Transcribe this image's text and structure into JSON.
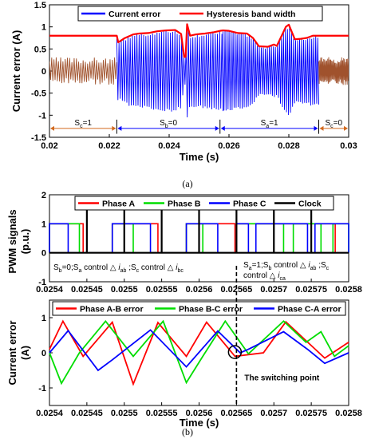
{
  "chart_data": [
    {
      "type": "line",
      "panel_label": "(a)",
      "xlabel": "Time (s)",
      "ylabel": "Current error  (A)",
      "xlim": [
        0.02,
        0.03
      ],
      "ylim": [
        -1.5,
        1.5
      ],
      "xticks": [
        "0.02",
        "0.022",
        "0.024",
        "0.026",
        "0.028",
        "0.03"
      ],
      "yticks": [
        "-1.5",
        "-1",
        "-0.5",
        "0",
        "0.5",
        "1",
        "1.5"
      ],
      "legend": {
        "placement": "top",
        "entries": [
          "Current error",
          "Hysteresis band width"
        ]
      },
      "colors": {
        "error_brown": "#a0522d",
        "error_blue": "#0000ff",
        "band": "#ff0000",
        "annot": "#d2691e"
      },
      "series": [
        {
          "name": "Current error",
          "segments": [
            {
              "x0": 0.02,
              "x1": 0.02225,
              "amplitude": 0.3,
              "color": "brown"
            },
            {
              "x0": 0.02225,
              "x1": 0.0258,
              "amplitude": "follows band",
              "color": "blue"
            },
            {
              "x0": 0.0258,
              "x1": 0.029,
              "amplitude": "follows band",
              "color": "blue"
            },
            {
              "x0": 0.029,
              "x1": 0.03,
              "amplitude": 0.3,
              "color": "brown"
            }
          ]
        },
        {
          "name": "Hysteresis band width",
          "x": [
            0.02,
            0.02225,
            0.0223,
            0.0225,
            0.0228,
            0.023,
            0.0233,
            0.0236,
            0.0239,
            0.0242,
            0.0244,
            0.0245,
            0.02455,
            0.0246,
            0.0247,
            0.0249,
            0.0252,
            0.0255,
            0.0257,
            0.0258,
            0.026,
            0.0263,
            0.0266,
            0.0268,
            0.027,
            0.0273,
            0.0275,
            0.0276,
            0.0279,
            0.028,
            0.0282,
            0.0284,
            0.0286,
            0.0288,
            0.029,
            0.03
          ],
          "y": [
            0.8,
            0.8,
            0.65,
            0.74,
            0.83,
            0.85,
            0.86,
            0.9,
            0.92,
            0.93,
            0.84,
            0.32,
            0.32,
            1.06,
            0.8,
            0.83,
            0.85,
            0.88,
            0.91,
            0.92,
            0.91,
            0.86,
            0.85,
            0.75,
            0.56,
            0.55,
            0.6,
            0.57,
            1.0,
            1.05,
            0.72,
            0.73,
            0.75,
            0.8,
            0.8,
            0.8
          ]
        }
      ],
      "regions": [
        {
          "label_main": "S",
          "label_sub": "c",
          "label_rest": "=1",
          "x0": 0.02,
          "x1": 0.02225,
          "color": "brown"
        },
        {
          "label_main": "S",
          "label_sub": "b",
          "label_rest": "=0",
          "x0": 0.02225,
          "x1": 0.0257,
          "color": "blue"
        },
        {
          "label_main": "S",
          "label_sub": "a",
          "label_rest": "=1",
          "x0": 0.0257,
          "x1": 0.029,
          "color": "blue"
        },
        {
          "label_main": "S",
          "label_sub": "c",
          "label_rest": "=0",
          "x0": 0.029,
          "x1": 0.03,
          "color": "brown"
        }
      ]
    },
    {
      "type": "line",
      "panel_label": "(b)",
      "ylabel_1": "PWM signals",
      "ylabel_2": "(p.u.)",
      "xlim": [
        0.0254,
        0.0258
      ],
      "ylim": [
        -1,
        2
      ],
      "yticks": [
        "-1",
        "0",
        "1",
        "2"
      ],
      "xticks": [
        "0.0254",
        "0.02545",
        "0.0255",
        "0.02555",
        "0.0256",
        "0.02565",
        "0.0257",
        "0.02575",
        "0.0258"
      ],
      "legend": {
        "placement": "top",
        "entries": [
          "Phase A",
          "Phase B",
          "Phase C",
          "Clock"
        ]
      },
      "colors": {
        "A": "#ff0000",
        "B": "#00dd00",
        "C": "#0000ff",
        "Clock": "#000000"
      },
      "series": [
        {
          "name": "Phase A",
          "pulses": [
            [
              0.0254,
              0.025445
            ],
            [
              0.025484,
              0.025545
            ],
            [
              0.025583,
              0.025648
            ],
            [
              0.02565,
              0.025782
            ]
          ]
        },
        {
          "name": "Phase B",
          "pulses": [
            [
              0.0254,
              0.02544
            ],
            [
              0.025484,
              0.025512
            ],
            [
              0.025583,
              0.025605
            ],
            [
              0.02565,
              0.025713
            ],
            [
              0.025726,
              0.025763
            ],
            [
              0.025779,
              0.0258
            ]
          ]
        },
        {
          "name": "Phase C",
          "pulses": [
            [
              0.0254,
              0.025425
            ],
            [
              0.025484,
              0.025535
            ],
            [
              0.025583,
              0.025625
            ],
            [
              0.02565,
              0.025666
            ],
            [
              0.025676,
              0.025745
            ],
            [
              0.025755,
              0.0258
            ]
          ]
        },
        {
          "name": "Clock",
          "x": [
            0.02545,
            0.0255,
            0.02555,
            0.0256,
            0.02565,
            0.0257,
            0.02575
          ],
          "height": 1.5
        }
      ],
      "annotations": [
        {
          "type": "text-sub",
          "parts": [
            [
              "S",
              ""
            ],
            [
              "b",
              "sub"
            ],
            [
              "=0;S",
              ""
            ],
            [
              "a",
              "sub"
            ],
            [
              " control △ ",
              ""
            ],
            [
              "i",
              "i"
            ],
            [
              "ab",
              "sub"
            ],
            [
              " ;S",
              ""
            ],
            [
              "c",
              "sub"
            ],
            [
              " control △ ",
              ""
            ],
            [
              "i",
              "i"
            ],
            [
              "bc",
              "sub"
            ]
          ]
        },
        {
          "type": "text-sub",
          "parts": [
            [
              "S",
              ""
            ],
            [
              "a",
              "sub"
            ],
            [
              "=1;S",
              ""
            ],
            [
              "b",
              "sub"
            ],
            [
              " control △ ",
              ""
            ],
            [
              "i",
              "i"
            ],
            [
              "ab",
              "sub"
            ],
            [
              " ;S",
              ""
            ],
            [
              "c",
              "sub"
            ]
          ]
        },
        {
          "type": "text-sub",
          "parts": [
            [
              "control △ ",
              ""
            ],
            [
              "i",
              "i"
            ],
            [
              "ca",
              "sub"
            ]
          ]
        }
      ]
    },
    {
      "type": "line",
      "ylabel_1": "Current error",
      "ylabel_2": "(A)",
      "xlabel": "Time (s)",
      "xlim": [
        0.0254,
        0.0258
      ],
      "ylim": [
        -1.5,
        1.5
      ],
      "yticks": [
        "-1",
        "0",
        "1"
      ],
      "xticks": [
        "0.0254",
        "0.02545",
        "0.0255",
        "0.02555",
        "0.0256",
        "0.02565",
        "0.0257",
        "0.02575",
        "0.0258"
      ],
      "legend": {
        "placement": "top",
        "entries": [
          "Phase A-B error",
          "Phase B-C error",
          "Phase C-A error"
        ]
      },
      "series": [
        {
          "name": "Phase A-B error",
          "x": [
            0.0254,
            0.025418,
            0.025445,
            0.025484,
            0.025512,
            0.025545,
            0.025583,
            0.02561,
            0.025648,
            0.025686,
            0.025716,
            0.025768,
            0.0258
          ],
          "y": [
            0.1,
            0.9,
            -0.1,
            0.87,
            -0.89,
            0.86,
            -0.1,
            0.87,
            -0.1,
            0.0,
            0.88,
            -0.15,
            0.3
          ]
        },
        {
          "name": "Phase B-C error",
          "x": [
            0.0254,
            0.025416,
            0.02544,
            0.025475,
            0.025512,
            0.025552,
            0.025583,
            0.025605,
            0.025635,
            0.025666,
            0.025713,
            0.025743,
            0.025763,
            0.025781,
            0.0258
          ],
          "y": [
            0.0,
            -0.87,
            0.0,
            0.9,
            -0.1,
            0.9,
            -0.85,
            -0.1,
            0.9,
            -0.03,
            0.9,
            0.3,
            0.6,
            -0.1,
            0.2
          ]
        },
        {
          "name": "Phase C-A error",
          "x": [
            0.0254,
            0.025425,
            0.025465,
            0.025484,
            0.025535,
            0.025583,
            0.025625,
            0.025655,
            0.025666,
            0.025713,
            0.025745,
            0.025768,
            0.0258
          ],
          "y": [
            0.0,
            0.63,
            -0.5,
            -0.2,
            0.65,
            -0.4,
            0.62,
            0.0,
            0.1,
            0.6,
            0.1,
            -0.3,
            0.0
          ]
        }
      ],
      "annotations": [
        {
          "text": "The switching point",
          "x": 0.02565,
          "y": 0.0
        }
      ],
      "switching_line_x": 0.02565
    }
  ]
}
